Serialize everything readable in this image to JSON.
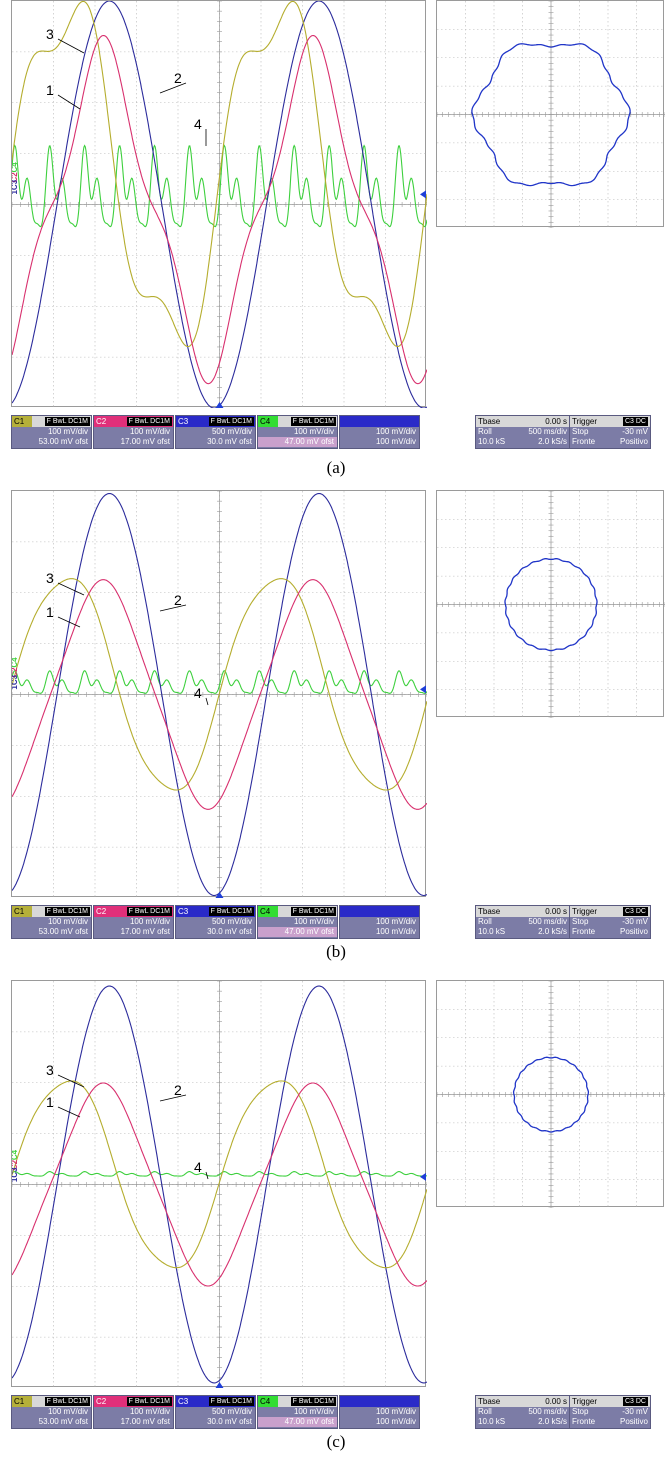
{
  "panels": [
    {
      "caption": "(a)",
      "trace_labels": [
        "1",
        "2",
        "3",
        "4"
      ],
      "xy_plot": {
        "shape": "hexagon-like",
        "radius_div": 2.6
      }
    },
    {
      "caption": "(b)",
      "trace_labels": [
        "1",
        "2",
        "3",
        "4"
      ],
      "xy_plot": {
        "shape": "circle",
        "radius_div": 1.6
      }
    },
    {
      "caption": "(c)",
      "trace_labels": [
        "1",
        "2",
        "3",
        "4"
      ],
      "xy_plot": {
        "shape": "circle",
        "radius_div": 1.3
      }
    }
  ],
  "side_labels": {
    "c4": "C4",
    "c2": "C2",
    "c1c3": "1C3"
  },
  "channel_boxes": [
    {
      "tag": "C1",
      "flags": "F BwL DC1M",
      "vdiv": "100 mV/div",
      "offset": "53.00 mV ofst",
      "color": "#b5b03a"
    },
    {
      "tag": "C2",
      "flags": "F BwL DC1M",
      "vdiv": "100 mV/div",
      "offset": "17.00 mV ofst",
      "color": "#e0307a"
    },
    {
      "tag": "C3",
      "flags": "F BwL DC1M",
      "vdiv": "500 mV/div",
      "offset": "30.0 mV ofst",
      "color": "#2a2ac8"
    },
    {
      "tag": "C4",
      "flags": "F BwL DC1M",
      "vdiv": "100 mV/div",
      "offset": "47.00 mV ofst",
      "color": "#33dd33"
    },
    {
      "tag": "",
      "flags": "",
      "vdiv": "100 mV/div",
      "offset": "100 mV/div",
      "color": "#2a2ac8"
    }
  ],
  "timebase": {
    "title": "Tbase",
    "delay": "0.00 s",
    "mode": "Roll",
    "tdiv": "500 ms/div",
    "samples": "10.0 kS",
    "rate": "2.0 kS/s"
  },
  "trigger": {
    "title": "Trigger",
    "source": "C3",
    "coupling": "DC",
    "state": "Stop",
    "level": "-30 mV",
    "edge_label": "Fronte",
    "edge": "Positivo"
  },
  "colors": {
    "trace1": "#b5ad2e",
    "trace2": "#d8306e",
    "trace3": "#2c2c9c",
    "trace4": "#3ed03e",
    "xy": "#2035c8",
    "grid": "#b8b8b8",
    "marker": "#1f3fd8"
  },
  "chart_data": {
    "type": "line",
    "note_units": "divisions",
    "x_range_div": [
      0,
      10
    ],
    "y_range_div": [
      -4,
      4
    ],
    "series": [
      {
        "name": "1",
        "period_div": 5.05,
        "amplitudes_div": [
          3.35,
          2.15,
          1.9
        ]
      },
      {
        "name": "2",
        "period_div": 5.05,
        "amplitudes_div": [
          2.9,
          2.15,
          1.9
        ]
      },
      {
        "name": "3",
        "period_div": 5.05,
        "amplitudes_div": [
          4.0,
          3.95,
          3.9
        ]
      },
      {
        "name": "4",
        "period_div": 5.05,
        "amplitudes_div": [
          0.9,
          0.25,
          0.05
        ]
      }
    ]
  }
}
